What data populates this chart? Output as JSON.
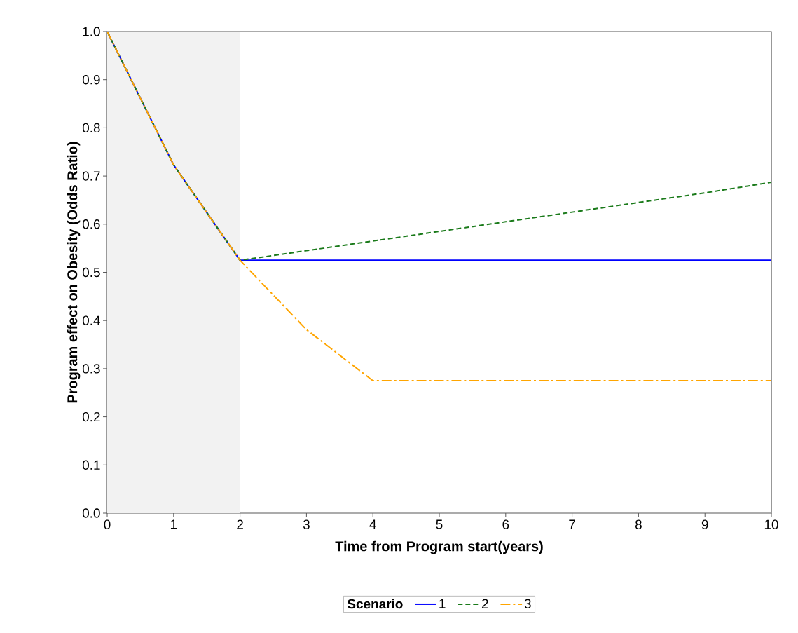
{
  "chart_data": {
    "type": "line",
    "xlabel": "Time from Program start(years)",
    "ylabel": "Program effect on Obesity (Odds Ratio)",
    "legend_title": "Scenario",
    "x": [
      0,
      1,
      2,
      3,
      4,
      5,
      6,
      7,
      8,
      9,
      10
    ],
    "series": [
      {
        "name": "1",
        "color": "#0000ff",
        "line_style": "solid",
        "values": [
          1.0,
          0.723,
          0.525,
          0.525,
          0.525,
          0.525,
          0.525,
          0.525,
          0.525,
          0.525,
          0.525
        ]
      },
      {
        "name": "2",
        "color": "#1a7a1a",
        "line_style": "dashed",
        "values": [
          1.0,
          0.723,
          0.525,
          0.545,
          0.565,
          0.585,
          0.605,
          0.625,
          0.645,
          0.665,
          0.687
        ]
      },
      {
        "name": "3",
        "color": "#ffa500",
        "line_style": "dashdot",
        "values": [
          1.0,
          0.723,
          0.525,
          0.381,
          0.275,
          0.275,
          0.275,
          0.275,
          0.275,
          0.275,
          0.275
        ]
      }
    ],
    "xlim": [
      0,
      10
    ],
    "ylim": [
      0,
      1.0
    ],
    "xticks": [
      0,
      1,
      2,
      3,
      4,
      5,
      6,
      7,
      8,
      9,
      10
    ],
    "yticks": [
      {
        "value": 0,
        "label": "0.0"
      },
      {
        "value": 0.1,
        "label": "0.1"
      },
      {
        "value": 0.2,
        "label": "0.2"
      },
      {
        "value": 0.3,
        "label": "0.3"
      },
      {
        "value": 0.4,
        "label": "0.4"
      },
      {
        "value": 0.5,
        "label": "0.5"
      },
      {
        "value": 0.6,
        "label": "0.6"
      },
      {
        "value": 0.7,
        "label": "0.7"
      },
      {
        "value": 0.8,
        "label": "0.8"
      },
      {
        "value": 0.9,
        "label": "0.9"
      },
      {
        "value": 1.0,
        "label": "1.0"
      }
    ],
    "bands": [
      {
        "axis": "x",
        "from": 0,
        "to": 2,
        "color": "#f2f2f2"
      }
    ],
    "legend": "bottom",
    "grid": false,
    "marker": "none"
  }
}
